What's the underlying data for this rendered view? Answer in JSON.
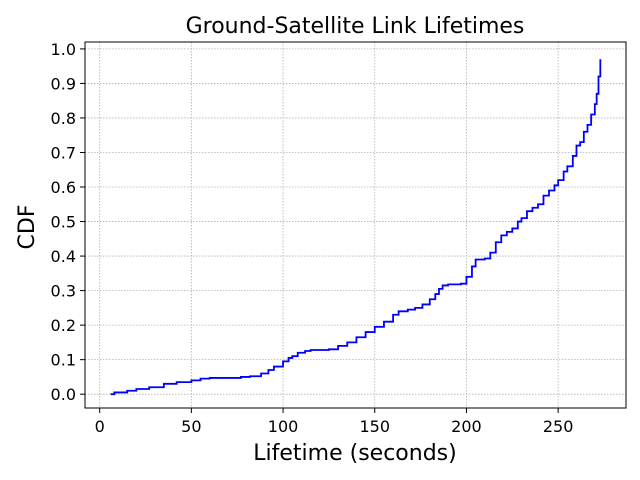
{
  "chart_data": {
    "type": "line",
    "title": "Ground-Satellite Link Lifetimes",
    "xlabel": "Lifetime (seconds)",
    "ylabel": "CDF",
    "xlim": [
      -8,
      287
    ],
    "ylim": [
      -0.04,
      1.02
    ],
    "x_ticks": [
      0,
      50,
      100,
      150,
      200,
      250
    ],
    "y_ticks": [
      0.0,
      0.1,
      0.2,
      0.3,
      0.4,
      0.5,
      0.6,
      0.7,
      0.8,
      0.9,
      1.0
    ],
    "x_tick_labels": [
      "0",
      "50",
      "100",
      "150",
      "200",
      "250"
    ],
    "y_tick_labels": [
      "0.0",
      "0.1",
      "0.2",
      "0.3",
      "0.4",
      "0.5",
      "0.6",
      "0.7",
      "0.8",
      "0.9",
      "1.0"
    ],
    "grid": true,
    "step": true,
    "color": "#0000ff",
    "series": [
      {
        "x": [
          6,
          8,
          15,
          20,
          27,
          35,
          42,
          50,
          55,
          60,
          70,
          77,
          82,
          88,
          92,
          95,
          100,
          103,
          105,
          108,
          112,
          115,
          120,
          125,
          130,
          135,
          140,
          145,
          150,
          155,
          160,
          163,
          168,
          172,
          176,
          180,
          183,
          185,
          187,
          190,
          194,
          197,
          200,
          203,
          205,
          210,
          213,
          216,
          219,
          222,
          225,
          228,
          230,
          233,
          236,
          239,
          242,
          245,
          248,
          250,
          253,
          255,
          258,
          260,
          262,
          264,
          266,
          268,
          270,
          271,
          272,
          273
        ],
        "y": [
          0.0,
          0.005,
          0.01,
          0.015,
          0.02,
          0.03,
          0.035,
          0.04,
          0.045,
          0.047,
          0.047,
          0.05,
          0.052,
          0.06,
          0.07,
          0.08,
          0.095,
          0.105,
          0.11,
          0.12,
          0.125,
          0.128,
          0.128,
          0.13,
          0.14,
          0.15,
          0.165,
          0.18,
          0.195,
          0.21,
          0.23,
          0.24,
          0.245,
          0.25,
          0.26,
          0.275,
          0.29,
          0.305,
          0.315,
          0.318,
          0.318,
          0.32,
          0.34,
          0.37,
          0.39,
          0.393,
          0.41,
          0.44,
          0.46,
          0.47,
          0.48,
          0.5,
          0.51,
          0.53,
          0.54,
          0.55,
          0.575,
          0.59,
          0.605,
          0.62,
          0.645,
          0.66,
          0.69,
          0.72,
          0.73,
          0.76,
          0.78,
          0.81,
          0.84,
          0.87,
          0.92,
          0.97
        ]
      }
    ]
  }
}
